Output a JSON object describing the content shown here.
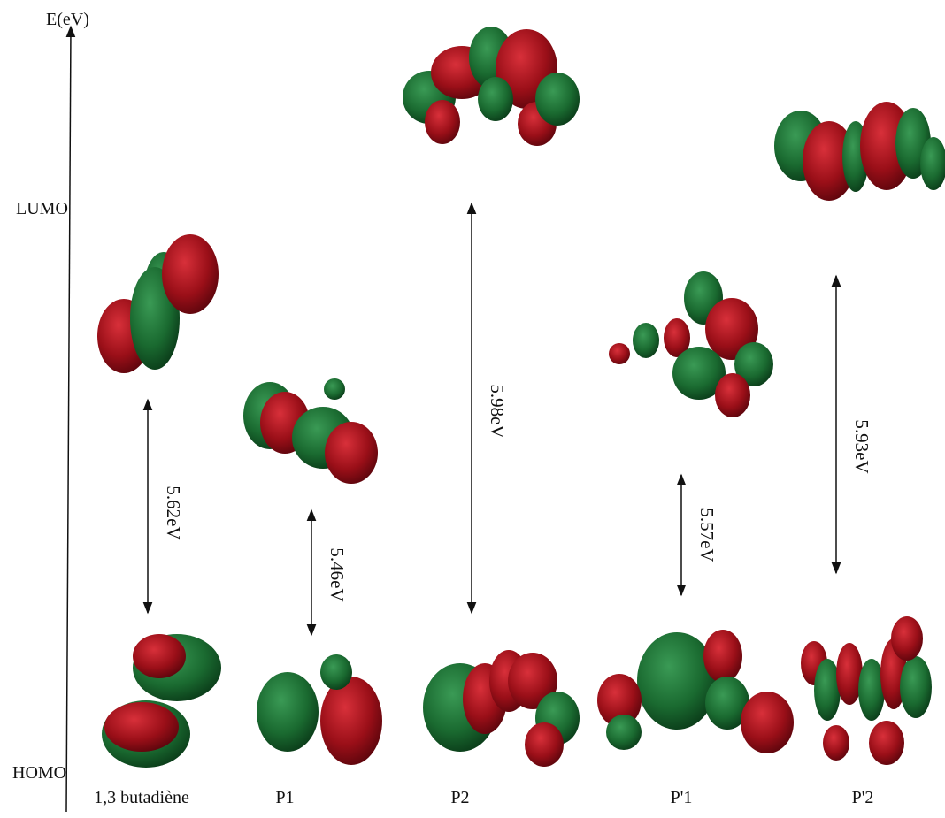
{
  "axis_label": "E(eV)",
  "lumo_label": "LUMO",
  "homo_label": "HOMO",
  "molecules": [
    {
      "name": "1,3 butadiène",
      "gap": "5.62eV"
    },
    {
      "name": "P1",
      "gap": "5.46eV"
    },
    {
      "name": "P2",
      "gap": "5.98eV"
    },
    {
      "name": "P'1",
      "gap": "5.57eV"
    },
    {
      "name": "P'2",
      "gap": "5.93eV"
    }
  ]
}
